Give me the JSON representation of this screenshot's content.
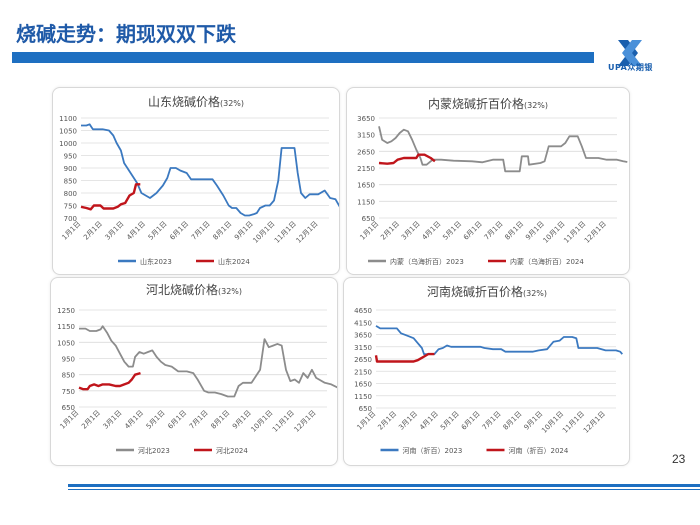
{
  "page": {
    "title": "烧碱走势：期现双双下跌",
    "page_number": "23",
    "logo_text": "UPA众期银"
  },
  "colors": {
    "accent": "#1e6fc1",
    "series_2023_blue": "#3b79c0",
    "series_2023_gray": "#8c8c8c",
    "series_2024": "#c0151b"
  },
  "chart_data": [
    {
      "id": "shandong",
      "type": "line",
      "title": "山东烧碱价格",
      "title_suffix": "(32%)",
      "yticks": [
        1100,
        1050,
        1000,
        950,
        900,
        850,
        800,
        750,
        700
      ],
      "ylim": [
        700,
        1100
      ],
      "xticks": [
        "1月1日",
        "2月1日",
        "3月1日",
        "4月1日",
        "5月1日",
        "6月1日",
        "7月1日",
        "8月1日",
        "9月1日",
        "10月1日",
        "11月1日",
        "12月1日"
      ],
      "grid": true,
      "legend_position": "bottom",
      "series": [
        {
          "name": "山东2023",
          "color": "#3b79c0",
          "points": [
            [
              0,
              1070
            ],
            [
              0.25,
              1070
            ],
            [
              0.4,
              1075
            ],
            [
              0.55,
              1055
            ],
            [
              1.0,
              1055
            ],
            [
              1.3,
              1050
            ],
            [
              1.5,
              1030
            ],
            [
              1.65,
              1000
            ],
            [
              1.85,
              970
            ],
            [
              2.0,
              920
            ],
            [
              2.3,
              880
            ],
            [
              2.6,
              840
            ],
            [
              2.8,
              800
            ],
            [
              3.0,
              790
            ],
            [
              3.2,
              780
            ],
            [
              3.5,
              800
            ],
            [
              3.8,
              830
            ],
            [
              4.0,
              860
            ],
            [
              4.15,
              900
            ],
            [
              4.4,
              900
            ],
            [
              4.6,
              890
            ],
            [
              4.9,
              880
            ],
            [
              5.1,
              855
            ],
            [
              5.5,
              855
            ],
            [
              5.8,
              855
            ],
            [
              6.1,
              855
            ],
            [
              6.3,
              830
            ],
            [
              6.6,
              790
            ],
            [
              6.85,
              750
            ],
            [
              7.0,
              740
            ],
            [
              7.2,
              740
            ],
            [
              7.4,
              720
            ],
            [
              7.6,
              710
            ],
            [
              7.8,
              710
            ],
            [
              8.0,
              715
            ],
            [
              8.15,
              720
            ],
            [
              8.3,
              740
            ],
            [
              8.55,
              750
            ],
            [
              8.75,
              750
            ],
            [
              8.95,
              770
            ],
            [
              9.15,
              850
            ],
            [
              9.3,
              980
            ],
            [
              9.5,
              980
            ],
            [
              9.75,
              980
            ],
            [
              9.9,
              980
            ],
            [
              10.05,
              880
            ],
            [
              10.2,
              800
            ],
            [
              10.4,
              780
            ],
            [
              10.6,
              795
            ],
            [
              11.0,
              795
            ],
            [
              11.3,
              810
            ],
            [
              11.55,
              780
            ],
            [
              11.8,
              775
            ],
            [
              12.0,
              745
            ],
            [
              12.2,
              745
            ]
          ]
        },
        {
          "name": "山东2024",
          "color": "#c0151b",
          "points": [
            [
              0,
              745
            ],
            [
              0.25,
              740
            ],
            [
              0.45,
              735
            ],
            [
              0.6,
              750
            ],
            [
              0.9,
              750
            ],
            [
              1.05,
              738
            ],
            [
              1.3,
              738
            ],
            [
              1.5,
              738
            ],
            [
              1.7,
              745
            ],
            [
              1.85,
              755
            ],
            [
              2.05,
              760
            ],
            [
              2.25,
              790
            ],
            [
              2.45,
              800
            ],
            [
              2.55,
              835
            ],
            [
              2.75,
              835
            ]
          ]
        }
      ]
    },
    {
      "id": "neimeng",
      "type": "line",
      "title": "内蒙烧碱折百价格",
      "title_suffix": "(32%)",
      "yticks": [
        3650,
        3150,
        2650,
        2150,
        1650,
        1150,
        650
      ],
      "ylim": [
        650,
        3650
      ],
      "xticks": [
        "1月1日",
        "2月1日",
        "3月1日",
        "4月1日",
        "5月1日",
        "6月1日",
        "7月1日",
        "8月1日",
        "9月1日",
        "10月1日",
        "11月1日",
        "12月1日"
      ],
      "grid": true,
      "legend_position": "bottom",
      "series": [
        {
          "name": "内蒙（乌海折百）2023",
          "color": "#8c8c8c",
          "points": [
            [
              0,
              3400
            ],
            [
              0.15,
              3000
            ],
            [
              0.4,
              2900
            ],
            [
              0.6,
              2950
            ],
            [
              0.8,
              3050
            ],
            [
              1.0,
              3200
            ],
            [
              1.2,
              3300
            ],
            [
              1.4,
              3250
            ],
            [
              1.6,
              3000
            ],
            [
              1.8,
              2700
            ],
            [
              2.0,
              2450
            ],
            [
              2.1,
              2250
            ],
            [
              2.3,
              2250
            ],
            [
              2.5,
              2350
            ],
            [
              2.6,
              2400
            ],
            [
              3.0,
              2400
            ],
            [
              3.6,
              2370
            ],
            [
              4.5,
              2350
            ],
            [
              5.0,
              2320
            ],
            [
              5.5,
              2400
            ],
            [
              6.0,
              2400
            ],
            [
              6.1,
              2050
            ],
            [
              6.8,
              2050
            ],
            [
              6.9,
              2500
            ],
            [
              7.2,
              2500
            ],
            [
              7.25,
              2250
            ],
            [
              7.8,
              2300
            ],
            [
              8.0,
              2350
            ],
            [
              8.2,
              2800
            ],
            [
              8.8,
              2800
            ],
            [
              9.0,
              2900
            ],
            [
              9.2,
              3100
            ],
            [
              9.6,
              3100
            ],
            [
              9.8,
              2800
            ],
            [
              10.0,
              2450
            ],
            [
              10.6,
              2450
            ],
            [
              11.0,
              2400
            ],
            [
              11.5,
              2400
            ],
            [
              11.8,
              2350
            ],
            [
              12.0,
              2330
            ]
          ]
        },
        {
          "name": "内蒙（乌海折百）2024",
          "color": "#c0151b",
          "points": [
            [
              0,
              2300
            ],
            [
              0.4,
              2280
            ],
            [
              0.7,
              2300
            ],
            [
              0.9,
              2400
            ],
            [
              1.2,
              2450
            ],
            [
              1.5,
              2450
            ],
            [
              1.8,
              2450
            ],
            [
              1.9,
              2550
            ],
            [
              2.2,
              2550
            ],
            [
              2.5,
              2450
            ],
            [
              2.7,
              2350
            ]
          ]
        }
      ]
    },
    {
      "id": "hebei",
      "type": "line",
      "title": "河北烧碱价格",
      "title_suffix": "(32%)",
      "yticks": [
        1250,
        1150,
        1050,
        950,
        850,
        750,
        650
      ],
      "ylim": [
        650,
        1250
      ],
      "xticks": [
        "1月1日",
        "2月1日",
        "3月1日",
        "4月1日",
        "5月1日",
        "6月1日",
        "7月1日",
        "8月1日",
        "9月1日",
        "10月1日",
        "11月1日",
        "12月1日"
      ],
      "grid": true,
      "legend_position": "bottom",
      "series": [
        {
          "name": "河北2023",
          "color": "#8c8c8c",
          "points": [
            [
              0,
              1135
            ],
            [
              0.3,
              1135
            ],
            [
              0.5,
              1120
            ],
            [
              0.8,
              1120
            ],
            [
              1.0,
              1130
            ],
            [
              1.1,
              1150
            ],
            [
              1.3,
              1110
            ],
            [
              1.5,
              1060
            ],
            [
              1.7,
              1030
            ],
            [
              1.9,
              980
            ],
            [
              2.1,
              930
            ],
            [
              2.3,
              900
            ],
            [
              2.5,
              900
            ],
            [
              2.6,
              960
            ],
            [
              2.8,
              990
            ],
            [
              3.0,
              980
            ],
            [
              3.2,
              990
            ],
            [
              3.4,
              1000
            ],
            [
              3.6,
              960
            ],
            [
              3.8,
              930
            ],
            [
              4.0,
              910
            ],
            [
              4.3,
              900
            ],
            [
              4.6,
              870
            ],
            [
              5.0,
              870
            ],
            [
              5.3,
              860
            ],
            [
              5.5,
              820
            ],
            [
              5.8,
              750
            ],
            [
              6.0,
              740
            ],
            [
              6.3,
              740
            ],
            [
              6.6,
              730
            ],
            [
              6.9,
              715
            ],
            [
              7.2,
              715
            ],
            [
              7.4,
              780
            ],
            [
              7.6,
              800
            ],
            [
              8.0,
              800
            ],
            [
              8.2,
              840
            ],
            [
              8.4,
              880
            ],
            [
              8.6,
              1070
            ],
            [
              8.8,
              1020
            ],
            [
              9.0,
              1030
            ],
            [
              9.2,
              1040
            ],
            [
              9.4,
              1030
            ],
            [
              9.6,
              880
            ],
            [
              9.8,
              810
            ],
            [
              10.0,
              820
            ],
            [
              10.2,
              800
            ],
            [
              10.4,
              860
            ],
            [
              10.6,
              830
            ],
            [
              10.8,
              880
            ],
            [
              11.0,
              830
            ],
            [
              11.4,
              800
            ],
            [
              11.7,
              790
            ],
            [
              12.0,
              770
            ]
          ]
        },
        {
          "name": "河北2024",
          "color": "#c0151b",
          "points": [
            [
              0,
              770
            ],
            [
              0.2,
              760
            ],
            [
              0.4,
              760
            ],
            [
              0.5,
              780
            ],
            [
              0.7,
              790
            ],
            [
              0.9,
              780
            ],
            [
              1.1,
              790
            ],
            [
              1.4,
              790
            ],
            [
              1.7,
              780
            ],
            [
              1.9,
              780
            ],
            [
              2.1,
              790
            ],
            [
              2.3,
              800
            ],
            [
              2.45,
              820
            ],
            [
              2.6,
              850
            ],
            [
              2.85,
              860
            ]
          ]
        }
      ]
    },
    {
      "id": "henan",
      "type": "line",
      "title": "河南烧碱折百价格",
      "title_suffix": "(32%)",
      "yticks": [
        4650,
        4150,
        3650,
        3150,
        2650,
        2150,
        1650,
        1150,
        650
      ],
      "ylim": [
        650,
        4650
      ],
      "xticks": [
        "1月1日",
        "2月1日",
        "3月1日",
        "4月1日",
        "5月1日",
        "6月1日",
        "7月1日",
        "8月1日",
        "9月1日",
        "10月1日",
        "11月1日",
        "12月1日"
      ],
      "grid": true,
      "legend_position": "bottom",
      "series": [
        {
          "name": "河南（折百）2023",
          "color": "#3b79c0",
          "points": [
            [
              0,
              4000
            ],
            [
              0.2,
              3900
            ],
            [
              0.6,
              3900
            ],
            [
              1.0,
              3900
            ],
            [
              1.2,
              3700
            ],
            [
              1.5,
              3600
            ],
            [
              1.8,
              3500
            ],
            [
              2.0,
              3300
            ],
            [
              2.2,
              3100
            ],
            [
              2.3,
              2850
            ],
            [
              2.8,
              2850
            ],
            [
              3.0,
              3050
            ],
            [
              3.2,
              3100
            ],
            [
              3.4,
              3200
            ],
            [
              3.6,
              3150
            ],
            [
              4.0,
              3150
            ],
            [
              4.5,
              3150
            ],
            [
              5.0,
              3150
            ],
            [
              5.2,
              3100
            ],
            [
              5.6,
              3050
            ],
            [
              6.0,
              3050
            ],
            [
              6.2,
              2950
            ],
            [
              6.6,
              2950
            ],
            [
              7.0,
              2950
            ],
            [
              7.5,
              2950
            ],
            [
              7.8,
              3000
            ],
            [
              8.2,
              3050
            ],
            [
              8.5,
              3350
            ],
            [
              8.8,
              3400
            ],
            [
              9.0,
              3550
            ],
            [
              9.4,
              3550
            ],
            [
              9.6,
              3500
            ],
            [
              9.7,
              3100
            ],
            [
              10.2,
              3100
            ],
            [
              10.6,
              3100
            ],
            [
              11.0,
              3000
            ],
            [
              11.5,
              3000
            ],
            [
              11.7,
              2950
            ],
            [
              11.8,
              2850
            ]
          ]
        },
        {
          "name": "河南（折百）2024",
          "color": "#c0151b",
          "points": [
            [
              0,
              2800
            ],
            [
              0.05,
              2550
            ],
            [
              0.5,
              2550
            ],
            [
              1.0,
              2550
            ],
            [
              1.5,
              2550
            ],
            [
              1.8,
              2550
            ],
            [
              2.0,
              2600
            ],
            [
              2.2,
              2700
            ],
            [
              2.5,
              2850
            ],
            [
              2.8,
              2850
            ]
          ]
        }
      ]
    }
  ]
}
